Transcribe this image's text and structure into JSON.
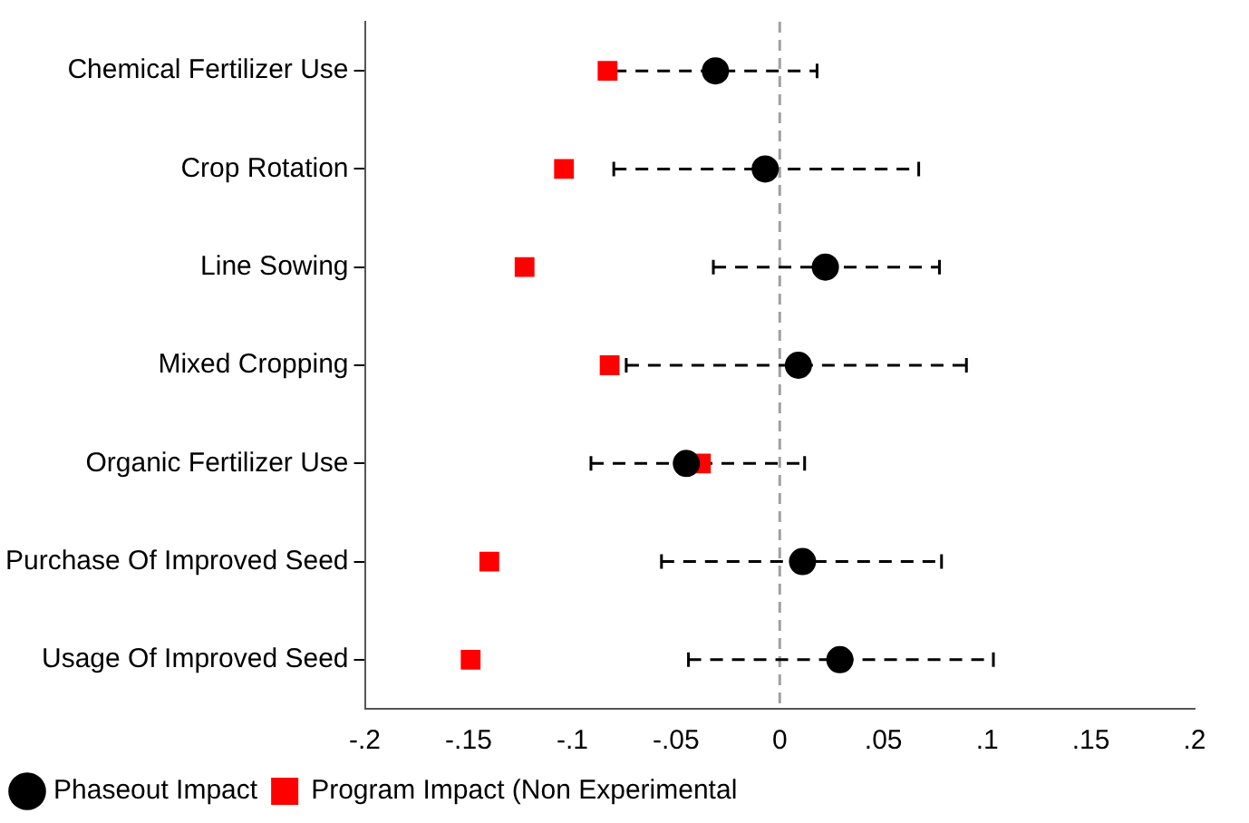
{
  "chart_data": {
    "type": "scatter",
    "orientation": "horizontal",
    "categories": [
      "Chemical Fertilizer Use",
      "Crop Rotation",
      "Line Sowing",
      "Mixed Cropping",
      "Organic Fertilizer Use",
      "Purchase Of Improved Seed",
      "Usage Of Improved Seed"
    ],
    "series": [
      {
        "name": "Phaseout Impact",
        "color": "#000000",
        "marker": "circle",
        "values": [
          -0.031,
          -0.007,
          0.022,
          0.009,
          -0.045,
          0.011,
          0.029
        ],
        "errors": [
          [
            -0.08,
            0.018
          ],
          [
            -0.08,
            0.067
          ],
          [
            -0.032,
            0.077
          ],
          [
            -0.074,
            0.09
          ],
          [
            -0.091,
            0.012
          ],
          [
            -0.057,
            0.078
          ],
          [
            -0.044,
            0.103
          ]
        ]
      },
      {
        "name": "Program Impact (Non Experimental",
        "color": "#ff0000",
        "marker": "square",
        "values": [
          -0.083,
          -0.104,
          -0.123,
          -0.082,
          -0.038,
          -0.14,
          -0.149
        ]
      }
    ],
    "xlim": [
      -0.2,
      0.2
    ],
    "xticks": [
      {
        "value": -0.2,
        "label": "-.2"
      },
      {
        "value": -0.15,
        "label": "-.15"
      },
      {
        "value": -0.1,
        "label": "-.1"
      },
      {
        "value": -0.05,
        "label": "-.05"
      },
      0,
      {
        "value": 0.05,
        "label": ".05"
      },
      {
        "value": 0.1,
        "label": ".1"
      },
      {
        "value": 0.15,
        "label": ".15"
      },
      {
        "value": 0.2,
        "label": ".2"
      }
    ],
    "ref_lines": [
      {
        "axis": "x",
        "value": 0,
        "color": "#a0a0a0",
        "line_style": "dashed"
      }
    ],
    "grid": false,
    "legend": "bottom"
  }
}
